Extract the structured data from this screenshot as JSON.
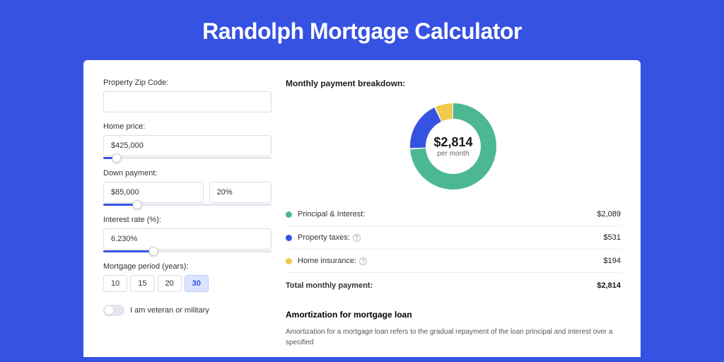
{
  "title": "Randolph Mortgage Calculator",
  "colors": {
    "page_bg": "#3652e3",
    "card_bg": "#ffffff",
    "accent": "#3652e3",
    "principal": "#4bb893",
    "taxes": "#3652e3",
    "insurance": "#f2c94c"
  },
  "form": {
    "zip": {
      "label": "Property Zip Code:",
      "value": ""
    },
    "price": {
      "label": "Home price:",
      "value": "$425,000",
      "slider_pct": 8
    },
    "down": {
      "label": "Down payment:",
      "amount": "$85,000",
      "pct": "20%",
      "slider_pct": 20
    },
    "rate": {
      "label": "Interest rate (%):",
      "value": "6.230%",
      "slider_pct": 30
    },
    "period": {
      "label": "Mortgage period (years):",
      "options": [
        "10",
        "15",
        "20",
        "30"
      ],
      "selected": "30"
    },
    "veteran": {
      "label": "I am veteran or military",
      "on": false
    }
  },
  "breakdown": {
    "title": "Monthly payment breakdown:",
    "amount": "$2,814",
    "sub": "per month",
    "items": [
      {
        "key": "principal",
        "label": "Principal & Interest:",
        "value": "$2,089",
        "color": "#4bb893",
        "pct": 74.2,
        "info": false
      },
      {
        "key": "taxes",
        "label": "Property taxes:",
        "value": "$531",
        "color": "#3652e3",
        "pct": 18.9,
        "info": true
      },
      {
        "key": "insurance",
        "label": "Home insurance:",
        "value": "$194",
        "color": "#f2c94c",
        "pct": 6.9,
        "info": true
      }
    ],
    "total": {
      "label": "Total monthly payment:",
      "value": "$2,814"
    }
  },
  "amort": {
    "title": "Amortization for mortgage loan",
    "text": "Amortization for a mortgage loan refers to the gradual repayment of the loan principal and interest over a specified"
  },
  "donut": {
    "radius": 50,
    "stroke": 22,
    "gap_deg": 1.5
  }
}
